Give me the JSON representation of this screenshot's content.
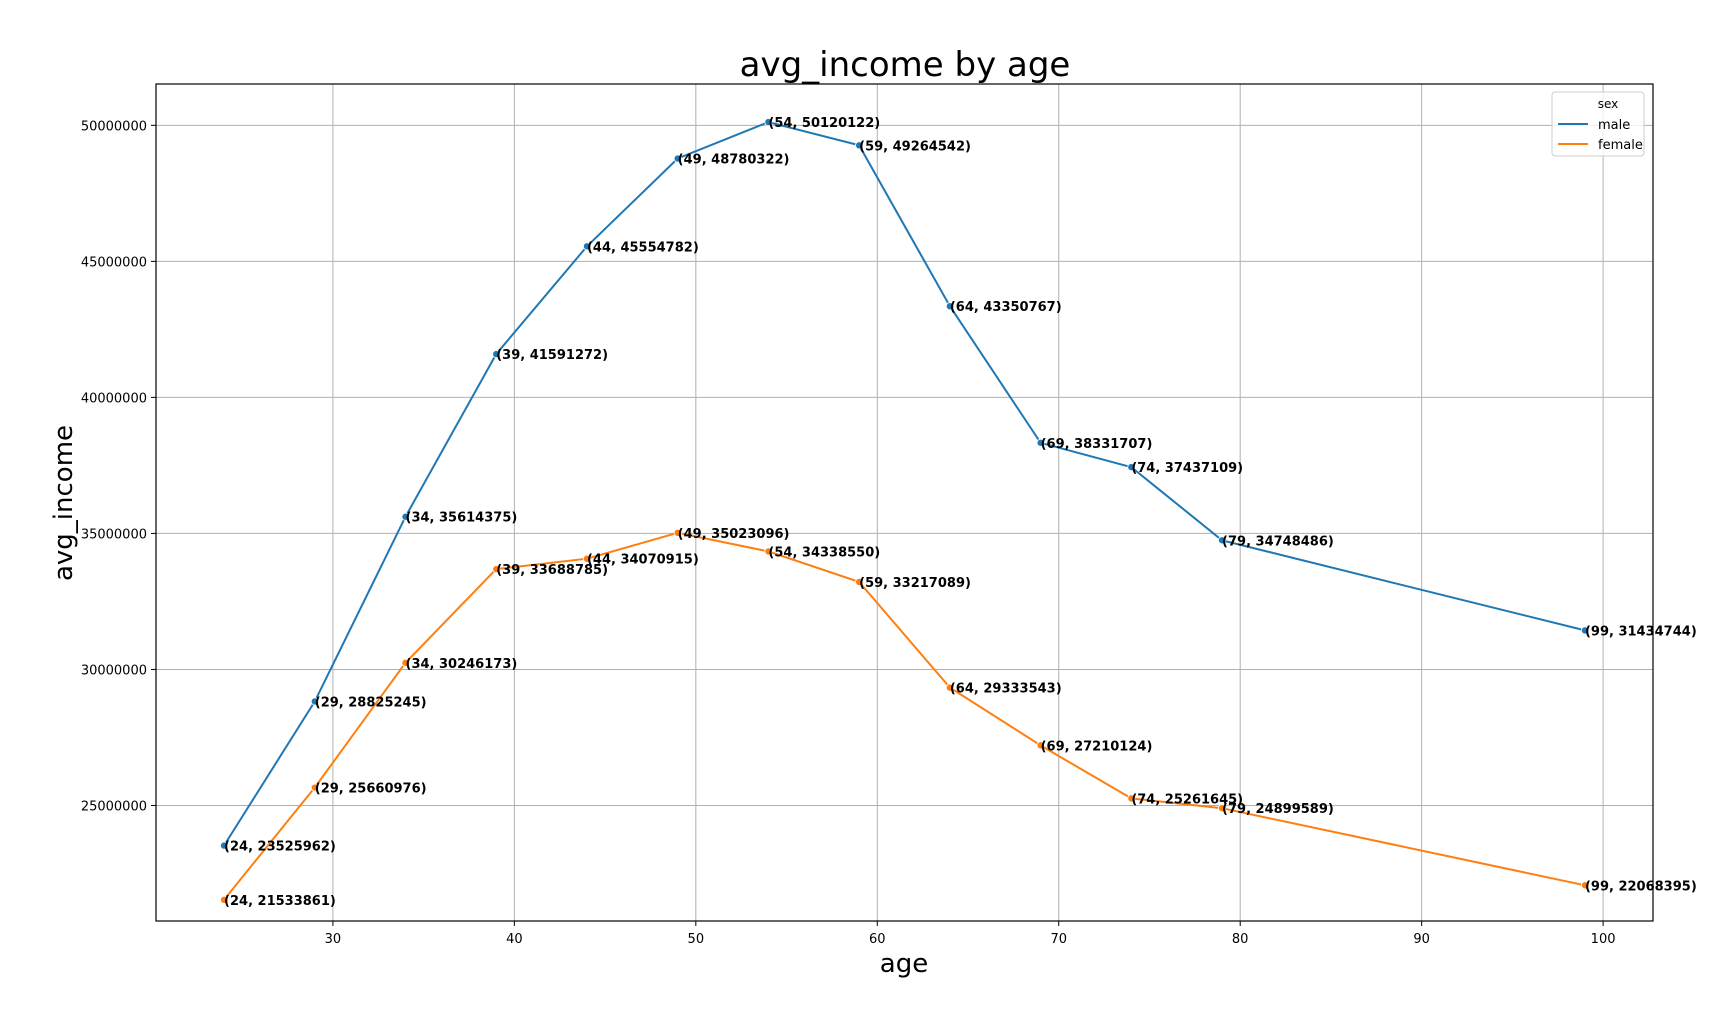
{
  "chart_data": {
    "type": "line",
    "title": "avg_income by age",
    "xlabel": "age",
    "ylabel": "avg_income",
    "xlim": [
      20.25,
      102.75
    ],
    "ylim": [
      20754747,
      51519235
    ],
    "grid": true,
    "legend": {
      "title": "sex",
      "placement": "top-right"
    },
    "x_ticks": [
      30,
      40,
      50,
      60,
      70,
      80,
      90,
      100
    ],
    "y_ticks": [
      25000000,
      30000000,
      35000000,
      40000000,
      45000000,
      50000000
    ],
    "series": [
      {
        "name": "male",
        "color": "#1f77b4",
        "points": [
          {
            "x": 24,
            "y": 23525962,
            "label": "(24, 23525962)"
          },
          {
            "x": 29,
            "y": 28825245,
            "label": "(29, 28825245)"
          },
          {
            "x": 34,
            "y": 35614375,
            "label": "(34, 35614375)"
          },
          {
            "x": 39,
            "y": 41591272,
            "label": "(39, 41591272)"
          },
          {
            "x": 44,
            "y": 45554782,
            "label": "(44, 45554782)"
          },
          {
            "x": 49,
            "y": 48780322,
            "label": "(49, 48780322)"
          },
          {
            "x": 54,
            "y": 50120122,
            "label": "(54, 50120122)"
          },
          {
            "x": 59,
            "y": 49264542,
            "label": "(59, 49264542)"
          },
          {
            "x": 64,
            "y": 43350767,
            "label": "(64, 43350767)"
          },
          {
            "x": 69,
            "y": 38331707,
            "label": "(69, 38331707)"
          },
          {
            "x": 74,
            "y": 37437109,
            "label": "(74, 37437109)"
          },
          {
            "x": 79,
            "y": 34748486,
            "label": "(79, 34748486)"
          },
          {
            "x": 99,
            "y": 31434744,
            "label": "(99, 31434744)"
          }
        ]
      },
      {
        "name": "female",
        "color": "#ff7f0e",
        "points": [
          {
            "x": 24,
            "y": 21533861,
            "label": "(24, 21533861)"
          },
          {
            "x": 29,
            "y": 25660976,
            "label": "(29, 25660976)"
          },
          {
            "x": 34,
            "y": 30246173,
            "label": "(34, 30246173)"
          },
          {
            "x": 39,
            "y": 33688785,
            "label": "(39, 33688785)"
          },
          {
            "x": 44,
            "y": 34070915,
            "label": "(44, 34070915)"
          },
          {
            "x": 49,
            "y": 35023096,
            "label": "(49, 35023096)"
          },
          {
            "x": 54,
            "y": 34338550,
            "label": "(54, 34338550)"
          },
          {
            "x": 59,
            "y": 33217089,
            "label": "(59, 33217089)"
          },
          {
            "x": 64,
            "y": 29333543,
            "label": "(64, 29333543)"
          },
          {
            "x": 69,
            "y": 27210124,
            "label": "(69, 27210124)"
          },
          {
            "x": 74,
            "y": 25261645,
            "label": "(74, 25261645)"
          },
          {
            "x": 79,
            "y": 24899589,
            "label": "(79, 24899589)"
          },
          {
            "x": 99,
            "y": 22068395,
            "label": "(99, 22068395)"
          }
        ]
      }
    ]
  }
}
